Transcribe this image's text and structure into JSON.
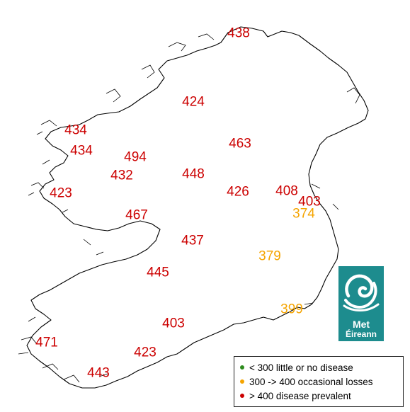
{
  "colors": {
    "low": "#2e8b1e",
    "medium": "#f5a400",
    "high": "#cc0000",
    "coast": "#000000",
    "logo_bg": "#1d8c8e"
  },
  "values": [
    {
      "value": "438",
      "level": "high"
    },
    {
      "value": "424",
      "level": "high"
    },
    {
      "value": "434",
      "level": "high"
    },
    {
      "value": "434",
      "level": "high"
    },
    {
      "value": "494",
      "level": "high"
    },
    {
      "value": "463",
      "level": "high"
    },
    {
      "value": "432",
      "level": "high"
    },
    {
      "value": "448",
      "level": "high"
    },
    {
      "value": "423",
      "level": "high"
    },
    {
      "value": "426",
      "level": "high"
    },
    {
      "value": "408",
      "level": "high"
    },
    {
      "value": "403",
      "level": "high"
    },
    {
      "value": "467",
      "level": "high"
    },
    {
      "value": "374",
      "level": "medium"
    },
    {
      "value": "437",
      "level": "high"
    },
    {
      "value": "379",
      "level": "medium"
    },
    {
      "value": "445",
      "level": "high"
    },
    {
      "value": "399",
      "level": "medium"
    },
    {
      "value": "403",
      "level": "high"
    },
    {
      "value": "471",
      "level": "high"
    },
    {
      "value": "423",
      "level": "high"
    },
    {
      "value": "443",
      "level": "high"
    }
  ],
  "legend": {
    "items": [
      {
        "label": "< 300  little or no disease",
        "level": "low"
      },
      {
        "label": "300 -> 400  occasional losses",
        "level": "medium"
      },
      {
        "label": "> 400  disease prevalent",
        "level": "high"
      }
    ]
  },
  "logo": {
    "line1": "Met",
    "line2": "Éireann",
    "icon": "swirl-icon"
  }
}
